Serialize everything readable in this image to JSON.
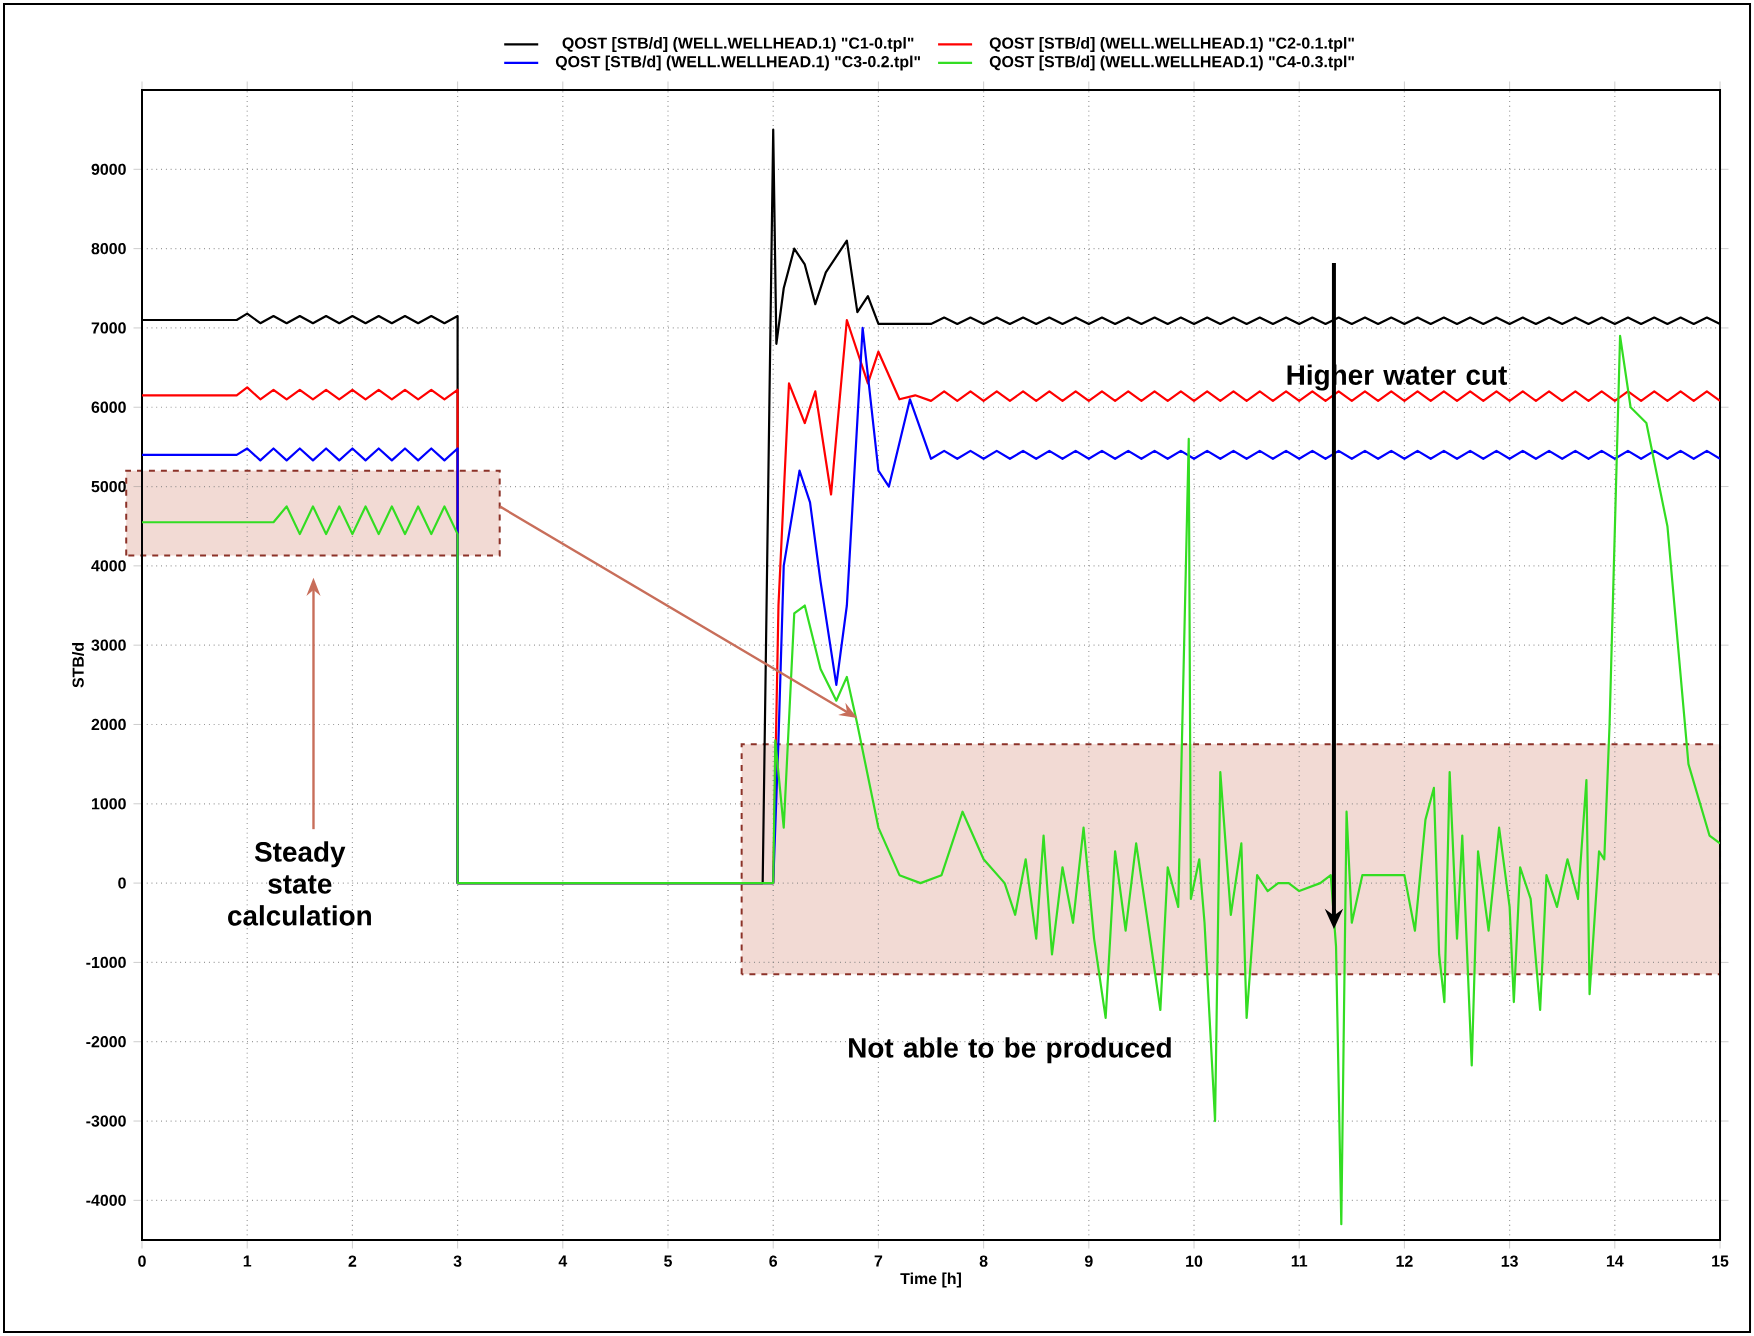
{
  "chart_data": {
    "type": "line",
    "xlabel": "Time [h]",
    "ylabel": "STB/d",
    "xlim": [
      0,
      15
    ],
    "ylim": [
      -4500,
      10000
    ],
    "xticks": [
      0,
      1,
      2,
      3,
      4,
      5,
      6,
      7,
      8,
      9,
      10,
      11,
      12,
      13,
      14,
      15
    ],
    "yticks": [
      -4000,
      -3000,
      -2000,
      -1000,
      0,
      1000,
      2000,
      3000,
      4000,
      5000,
      6000,
      7000,
      8000,
      9000
    ],
    "grid": true,
    "legend": "top",
    "marker": "none",
    "line_style": "solid",
    "series": [
      {
        "name": "QOST [STB/d] (WELL.WELLHEAD.1) \"C1-0.tpl\"",
        "color": "#000000",
        "x": [
          0,
          0.9,
          1,
          1.125,
          1.25,
          1.375,
          1.5,
          1.625,
          1.75,
          1.875,
          2,
          2.125,
          2.25,
          2.375,
          2.5,
          2.625,
          2.75,
          2.875,
          3,
          3,
          5.9,
          6,
          6.03,
          6.1,
          6.2,
          6.3,
          6.4,
          6.5,
          6.7,
          6.8,
          6.9,
          7,
          7.5,
          7.625,
          7.75,
          7.875,
          8,
          8.125,
          8.25,
          8.375,
          8.5,
          8.625,
          8.75,
          8.875,
          9,
          9.125,
          9.25,
          9.375,
          9.5,
          9.625,
          9.75,
          9.875,
          10,
          10.125,
          10.25,
          10.375,
          10.5,
          10.625,
          10.75,
          10.875,
          11,
          11.125,
          11.25,
          11.375,
          11.5,
          11.625,
          11.75,
          11.875,
          12,
          12.125,
          12.25,
          12.375,
          12.5,
          12.625,
          12.75,
          12.875,
          13,
          13.125,
          13.25,
          13.375,
          13.5,
          13.625,
          13.75,
          13.875,
          14,
          14.125,
          14.25,
          14.375,
          14.5,
          14.625,
          14.75,
          14.875,
          15
        ],
        "values": [
          7100,
          7100,
          7180,
          7060,
          7150,
          7060,
          7150,
          7060,
          7150,
          7060,
          7150,
          7060,
          7150,
          7060,
          7150,
          7060,
          7150,
          7060,
          7150,
          0,
          0,
          9500,
          6800,
          7500,
          8000,
          7800,
          7300,
          7700,
          8100,
          7200,
          7400,
          7050,
          7050,
          7130,
          7050,
          7130,
          7050,
          7130,
          7050,
          7130,
          7050,
          7130,
          7050,
          7130,
          7050,
          7130,
          7050,
          7130,
          7050,
          7130,
          7050,
          7130,
          7050,
          7130,
          7050,
          7130,
          7050,
          7130,
          7050,
          7130,
          7050,
          7130,
          7050,
          7130,
          7050,
          7130,
          7050,
          7130,
          7050,
          7130,
          7050,
          7130,
          7050,
          7130,
          7050,
          7130,
          7050,
          7130,
          7050,
          7130,
          7050,
          7130,
          7050,
          7130,
          7050,
          7130,
          7050,
          7130,
          7050,
          7130,
          7050,
          7130,
          7050
        ]
      },
      {
        "name": "QOST [STB/d] (WELL.WELLHEAD.1) \"C2-0.1.tpl\"",
        "color": "#ff0000",
        "x": [
          0,
          0.9,
          1,
          1.125,
          1.25,
          1.375,
          1.5,
          1.625,
          1.75,
          1.875,
          2,
          2.125,
          2.25,
          2.375,
          2.5,
          2.625,
          2.75,
          2.875,
          3,
          3,
          5.9,
          6,
          6.05,
          6.15,
          6.3,
          6.4,
          6.55,
          6.7,
          6.9,
          7,
          7.2,
          7.35,
          7.5,
          7.625,
          7.75,
          7.875,
          8,
          8.125,
          8.25,
          8.375,
          8.5,
          8.625,
          8.75,
          8.875,
          9,
          9.125,
          9.25,
          9.375,
          9.5,
          9.625,
          9.75,
          9.875,
          10,
          10.125,
          10.25,
          10.375,
          10.5,
          10.625,
          10.75,
          10.875,
          11,
          11.125,
          11.25,
          11.375,
          11.5,
          11.625,
          11.75,
          11.875,
          12,
          12.125,
          12.25,
          12.375,
          12.5,
          12.625,
          12.75,
          12.875,
          13,
          13.125,
          13.25,
          13.375,
          13.5,
          13.625,
          13.75,
          13.875,
          14,
          14.125,
          14.25,
          14.375,
          14.5,
          14.625,
          14.75,
          14.875,
          15
        ],
        "values": [
          6150,
          6150,
          6250,
          6100,
          6220,
          6100,
          6220,
          6100,
          6220,
          6100,
          6220,
          6100,
          6220,
          6100,
          6220,
          6100,
          6220,
          6100,
          6220,
          0,
          0,
          0,
          3500,
          6300,
          5800,
          6200,
          4900,
          7100,
          6300,
          6700,
          6100,
          6150,
          6080,
          6200,
          6080,
          6200,
          6080,
          6200,
          6080,
          6200,
          6080,
          6200,
          6080,
          6200,
          6080,
          6200,
          6080,
          6200,
          6080,
          6200,
          6080,
          6200,
          6080,
          6200,
          6080,
          6200,
          6080,
          6200,
          6080,
          6200,
          6080,
          6200,
          6080,
          6200,
          6080,
          6200,
          6080,
          6200,
          6080,
          6200,
          6080,
          6200,
          6080,
          6200,
          6080,
          6200,
          6080,
          6200,
          6080,
          6200,
          6080,
          6200,
          6080,
          6200,
          6080,
          6200,
          6080,
          6200,
          6080,
          6200,
          6080,
          6200,
          6080
        ]
      },
      {
        "name": "QOST [STB/d] (WELL.WELLHEAD.1) \"C3-0.2.tpl\"",
        "color": "#0000ff",
        "x": [
          0,
          0.9,
          1,
          1.125,
          1.25,
          1.375,
          1.5,
          1.625,
          1.75,
          1.875,
          2,
          2.125,
          2.25,
          2.375,
          2.5,
          2.625,
          2.75,
          2.875,
          3,
          3,
          5.9,
          6,
          6.05,
          6.1,
          6.25,
          6.35,
          6.45,
          6.6,
          6.7,
          6.85,
          7,
          7.1,
          7.3,
          7.5,
          7.625,
          7.75,
          7.875,
          8,
          8.125,
          8.25,
          8.375,
          8.5,
          8.625,
          8.75,
          8.875,
          9,
          9.125,
          9.25,
          9.375,
          9.5,
          9.625,
          9.75,
          9.875,
          10,
          10.125,
          10.25,
          10.375,
          10.5,
          10.625,
          10.75,
          10.875,
          11,
          11.125,
          11.25,
          11.375,
          11.5,
          11.625,
          11.75,
          11.875,
          12,
          12.125,
          12.25,
          12.375,
          12.5,
          12.625,
          12.75,
          12.875,
          13,
          13.125,
          13.25,
          13.375,
          13.5,
          13.625,
          13.75,
          13.875,
          14,
          14.125,
          14.25,
          14.375,
          14.5,
          14.625,
          14.75,
          14.875,
          15
        ],
        "values": [
          5400,
          5400,
          5480,
          5330,
          5480,
          5330,
          5480,
          5330,
          5480,
          5330,
          5480,
          5330,
          5480,
          5330,
          5480,
          5330,
          5480,
          5330,
          5480,
          0,
          0,
          0,
          1800,
          4000,
          5200,
          4800,
          3800,
          2500,
          3500,
          7000,
          5200,
          5000,
          6100,
          5350,
          5450,
          5350,
          5450,
          5350,
          5450,
          5350,
          5450,
          5350,
          5450,
          5350,
          5450,
          5350,
          5450,
          5350,
          5450,
          5350,
          5450,
          5350,
          5450,
          5350,
          5450,
          5350,
          5450,
          5350,
          5450,
          5350,
          5450,
          5350,
          5450,
          5350,
          5450,
          5350,
          5450,
          5350,
          5450,
          5350,
          5450,
          5350,
          5450,
          5350,
          5450,
          5350,
          5450,
          5350,
          5450,
          5350,
          5450,
          5350,
          5450,
          5350,
          5450,
          5350,
          5450,
          5350,
          5450,
          5350,
          5450,
          5350,
          5450,
          5350
        ]
      },
      {
        "name": "QOST [STB/d] (WELL.WELLHEAD.1) \"C4-0.3.tpl\"",
        "color": "#33dd22",
        "x": [
          0,
          1.2,
          1.25,
          1.375,
          1.5,
          1.625,
          1.75,
          1.875,
          2,
          2.125,
          2.25,
          2.375,
          2.5,
          2.625,
          2.75,
          2.875,
          3,
          3,
          5.9,
          6,
          6.02,
          6.1,
          6.2,
          6.3,
          6.45,
          6.6,
          6.7,
          6.8,
          7,
          7.2,
          7.4,
          7.6,
          7.8,
          8,
          8.2,
          8.3,
          8.4,
          8.5,
          8.57,
          8.65,
          8.75,
          8.85,
          8.95,
          9.05,
          9.16,
          9.25,
          9.35,
          9.45,
          9.55,
          9.68,
          9.75,
          9.85,
          9.95,
          9.97,
          10.05,
          10.1,
          10.2,
          10.25,
          10.35,
          10.45,
          10.5,
          10.6,
          10.7,
          10.8,
          10.9,
          11,
          11.2,
          11.3,
          11.35,
          11.4,
          11.45,
          11.5,
          11.6,
          11.8,
          12,
          12.1,
          12.2,
          12.28,
          12.33,
          12.38,
          12.43,
          12.5,
          12.55,
          12.64,
          12.7,
          12.8,
          12.9,
          13,
          13.04,
          13.1,
          13.2,
          13.29,
          13.35,
          13.45,
          13.55,
          13.65,
          13.73,
          13.76,
          13.85,
          13.9,
          13.95,
          14.05,
          14.15,
          14.3,
          14.5,
          14.7,
          14.9,
          15
        ],
        "values": [
          4550,
          4550,
          4550,
          4750,
          4400,
          4750,
          4400,
          4750,
          4400,
          4750,
          4400,
          4750,
          4400,
          4750,
          4400,
          4750,
          4400,
          0,
          0,
          0,
          1800,
          700,
          3400,
          3500,
          2700,
          2300,
          2600,
          2000,
          700,
          100,
          0,
          100,
          900,
          300,
          0,
          -400,
          300,
          -700,
          600,
          -900,
          200,
          -500,
          700,
          -700,
          -1700,
          400,
          -600,
          500,
          -400,
          -1600,
          200,
          -300,
          5600,
          -200,
          300,
          -500,
          -3000,
          1400,
          -400,
          500,
          -1700,
          100,
          -100,
          0,
          0,
          -100,
          0,
          100,
          -800,
          -4300,
          900,
          -500,
          100,
          100,
          100,
          -600,
          800,
          1200,
          -900,
          -1500,
          1400,
          -700,
          600,
          -2300,
          400,
          -600,
          700,
          -300,
          -1500,
          200,
          -200,
          -1600,
          100,
          -300,
          300,
          -200,
          1300,
          -1400,
          400,
          300,
          2000,
          6900,
          6000,
          5800,
          4500,
          1500,
          600,
          500
        ]
      }
    ],
    "annotations": [
      "Steady state calculation",
      "Higher water cut",
      "Not able to be produced"
    ]
  }
}
